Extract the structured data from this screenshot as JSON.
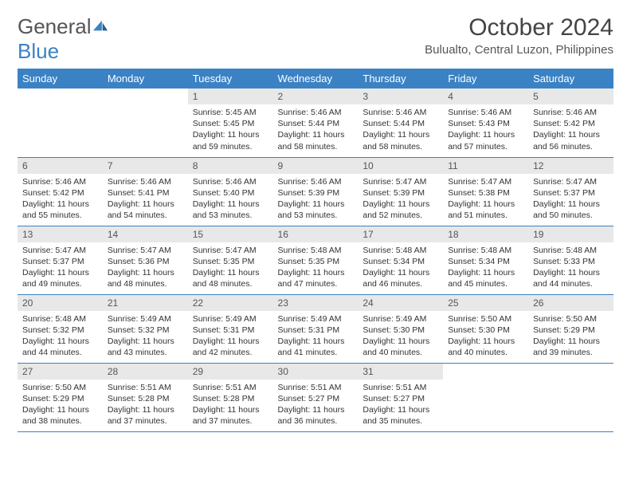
{
  "brand": {
    "general": "General",
    "blue": "Blue"
  },
  "title": "October 2024",
  "location": "Bulualto, Central Luzon, Philippines",
  "colors": {
    "accent": "#3b82c4",
    "header_bg": "#3b82c4",
    "daynum_bg": "#e8e8e8"
  },
  "weekdays": [
    "Sunday",
    "Monday",
    "Tuesday",
    "Wednesday",
    "Thursday",
    "Friday",
    "Saturday"
  ],
  "weeks": [
    [
      {
        "empty": true
      },
      {
        "empty": true
      },
      {
        "day": "1",
        "sunrise": "Sunrise: 5:45 AM",
        "sunset": "Sunset: 5:45 PM",
        "daylight": "Daylight: 11 hours and 59 minutes."
      },
      {
        "day": "2",
        "sunrise": "Sunrise: 5:46 AM",
        "sunset": "Sunset: 5:44 PM",
        "daylight": "Daylight: 11 hours and 58 minutes."
      },
      {
        "day": "3",
        "sunrise": "Sunrise: 5:46 AM",
        "sunset": "Sunset: 5:44 PM",
        "daylight": "Daylight: 11 hours and 58 minutes."
      },
      {
        "day": "4",
        "sunrise": "Sunrise: 5:46 AM",
        "sunset": "Sunset: 5:43 PM",
        "daylight": "Daylight: 11 hours and 57 minutes."
      },
      {
        "day": "5",
        "sunrise": "Sunrise: 5:46 AM",
        "sunset": "Sunset: 5:42 PM",
        "daylight": "Daylight: 11 hours and 56 minutes."
      }
    ],
    [
      {
        "day": "6",
        "sunrise": "Sunrise: 5:46 AM",
        "sunset": "Sunset: 5:42 PM",
        "daylight": "Daylight: 11 hours and 55 minutes."
      },
      {
        "day": "7",
        "sunrise": "Sunrise: 5:46 AM",
        "sunset": "Sunset: 5:41 PM",
        "daylight": "Daylight: 11 hours and 54 minutes."
      },
      {
        "day": "8",
        "sunrise": "Sunrise: 5:46 AM",
        "sunset": "Sunset: 5:40 PM",
        "daylight": "Daylight: 11 hours and 53 minutes."
      },
      {
        "day": "9",
        "sunrise": "Sunrise: 5:46 AM",
        "sunset": "Sunset: 5:39 PM",
        "daylight": "Daylight: 11 hours and 53 minutes."
      },
      {
        "day": "10",
        "sunrise": "Sunrise: 5:47 AM",
        "sunset": "Sunset: 5:39 PM",
        "daylight": "Daylight: 11 hours and 52 minutes."
      },
      {
        "day": "11",
        "sunrise": "Sunrise: 5:47 AM",
        "sunset": "Sunset: 5:38 PM",
        "daylight": "Daylight: 11 hours and 51 minutes."
      },
      {
        "day": "12",
        "sunrise": "Sunrise: 5:47 AM",
        "sunset": "Sunset: 5:37 PM",
        "daylight": "Daylight: 11 hours and 50 minutes."
      }
    ],
    [
      {
        "day": "13",
        "sunrise": "Sunrise: 5:47 AM",
        "sunset": "Sunset: 5:37 PM",
        "daylight": "Daylight: 11 hours and 49 minutes."
      },
      {
        "day": "14",
        "sunrise": "Sunrise: 5:47 AM",
        "sunset": "Sunset: 5:36 PM",
        "daylight": "Daylight: 11 hours and 48 minutes."
      },
      {
        "day": "15",
        "sunrise": "Sunrise: 5:47 AM",
        "sunset": "Sunset: 5:35 PM",
        "daylight": "Daylight: 11 hours and 48 minutes."
      },
      {
        "day": "16",
        "sunrise": "Sunrise: 5:48 AM",
        "sunset": "Sunset: 5:35 PM",
        "daylight": "Daylight: 11 hours and 47 minutes."
      },
      {
        "day": "17",
        "sunrise": "Sunrise: 5:48 AM",
        "sunset": "Sunset: 5:34 PM",
        "daylight": "Daylight: 11 hours and 46 minutes."
      },
      {
        "day": "18",
        "sunrise": "Sunrise: 5:48 AM",
        "sunset": "Sunset: 5:34 PM",
        "daylight": "Daylight: 11 hours and 45 minutes."
      },
      {
        "day": "19",
        "sunrise": "Sunrise: 5:48 AM",
        "sunset": "Sunset: 5:33 PM",
        "daylight": "Daylight: 11 hours and 44 minutes."
      }
    ],
    [
      {
        "day": "20",
        "sunrise": "Sunrise: 5:48 AM",
        "sunset": "Sunset: 5:32 PM",
        "daylight": "Daylight: 11 hours and 44 minutes."
      },
      {
        "day": "21",
        "sunrise": "Sunrise: 5:49 AM",
        "sunset": "Sunset: 5:32 PM",
        "daylight": "Daylight: 11 hours and 43 minutes."
      },
      {
        "day": "22",
        "sunrise": "Sunrise: 5:49 AM",
        "sunset": "Sunset: 5:31 PM",
        "daylight": "Daylight: 11 hours and 42 minutes."
      },
      {
        "day": "23",
        "sunrise": "Sunrise: 5:49 AM",
        "sunset": "Sunset: 5:31 PM",
        "daylight": "Daylight: 11 hours and 41 minutes."
      },
      {
        "day": "24",
        "sunrise": "Sunrise: 5:49 AM",
        "sunset": "Sunset: 5:30 PM",
        "daylight": "Daylight: 11 hours and 40 minutes."
      },
      {
        "day": "25",
        "sunrise": "Sunrise: 5:50 AM",
        "sunset": "Sunset: 5:30 PM",
        "daylight": "Daylight: 11 hours and 40 minutes."
      },
      {
        "day": "26",
        "sunrise": "Sunrise: 5:50 AM",
        "sunset": "Sunset: 5:29 PM",
        "daylight": "Daylight: 11 hours and 39 minutes."
      }
    ],
    [
      {
        "day": "27",
        "sunrise": "Sunrise: 5:50 AM",
        "sunset": "Sunset: 5:29 PM",
        "daylight": "Daylight: 11 hours and 38 minutes."
      },
      {
        "day": "28",
        "sunrise": "Sunrise: 5:51 AM",
        "sunset": "Sunset: 5:28 PM",
        "daylight": "Daylight: 11 hours and 37 minutes."
      },
      {
        "day": "29",
        "sunrise": "Sunrise: 5:51 AM",
        "sunset": "Sunset: 5:28 PM",
        "daylight": "Daylight: 11 hours and 37 minutes."
      },
      {
        "day": "30",
        "sunrise": "Sunrise: 5:51 AM",
        "sunset": "Sunset: 5:27 PM",
        "daylight": "Daylight: 11 hours and 36 minutes."
      },
      {
        "day": "31",
        "sunrise": "Sunrise: 5:51 AM",
        "sunset": "Sunset: 5:27 PM",
        "daylight": "Daylight: 11 hours and 35 minutes."
      },
      {
        "empty": true
      },
      {
        "empty": true
      }
    ]
  ]
}
